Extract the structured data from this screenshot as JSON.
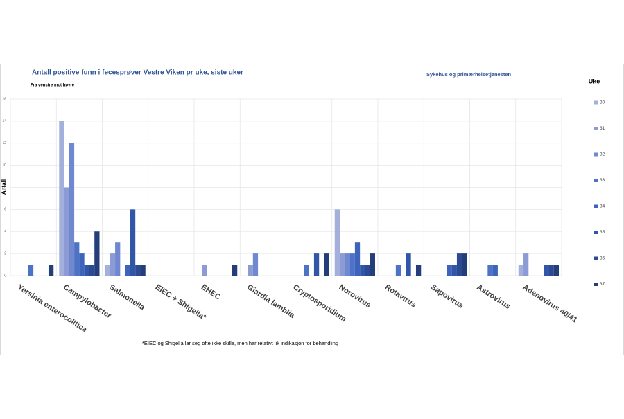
{
  "chart_data": {
    "type": "bar",
    "title": "Antall positive funn i fecesprøver Vestre Viken pr uke, siste uker",
    "subtitle": "Fra venstre mot høyre",
    "note": "Sykehus og primærhelsetjenesten",
    "y_label": "Antall",
    "legend_title": "Uke",
    "footnote": "*EIEC og Shigella lar seg ofte ikke skille, men har relativt lik indikasjon for behandling",
    "categories": [
      "Yersinia enterocolitica",
      "Campylobacter",
      "Salmonella",
      "EIEC + Shigella*",
      "EHEC",
      "Giardia lamblia",
      "Cryptosporidium",
      "Norovirus",
      "Rotavirus",
      "Sapovirus",
      "Astrovirus",
      "Adenovirus 40/41"
    ],
    "series": [
      {
        "name": "30",
        "color": "#a3b0dc",
        "values": [
          0,
          14,
          1,
          0,
          0,
          0,
          0,
          6,
          0,
          0,
          0,
          1
        ]
      },
      {
        "name": "31",
        "color": "#8d9bd5",
        "values": [
          0,
          8,
          2,
          0,
          1,
          1,
          0,
          2,
          0,
          0,
          0,
          2
        ]
      },
      {
        "name": "32",
        "color": "#6f88cf",
        "values": [
          0,
          12,
          3,
          0,
          0,
          2,
          0,
          2,
          0,
          0,
          0,
          0
        ]
      },
      {
        "name": "33",
        "color": "#4e72c6",
        "values": [
          1,
          3,
          0,
          0,
          0,
          0,
          1,
          2,
          1,
          0,
          1,
          0
        ]
      },
      {
        "name": "34",
        "color": "#3d63bb",
        "values": [
          0,
          2,
          1,
          0,
          0,
          0,
          0,
          3,
          0,
          1,
          1,
          0
        ]
      },
      {
        "name": "35",
        "color": "#3156a8",
        "values": [
          0,
          1,
          6,
          0,
          0,
          0,
          2,
          1,
          2,
          1,
          0,
          1
        ]
      },
      {
        "name": "36",
        "color": "#2b4a92",
        "values": [
          0,
          1,
          1,
          0,
          0,
          0,
          0,
          1,
          0,
          2,
          0,
          1
        ]
      },
      {
        "name": "37",
        "color": "#243e7a",
        "values": [
          1,
          4,
          1,
          0,
          1,
          0,
          2,
          2,
          1,
          2,
          0,
          1
        ]
      }
    ],
    "ylim": [
      0,
      16
    ],
    "yticks": [
      0,
      2,
      4,
      6,
      8,
      10,
      12,
      14,
      16
    ],
    "grid": true
  }
}
